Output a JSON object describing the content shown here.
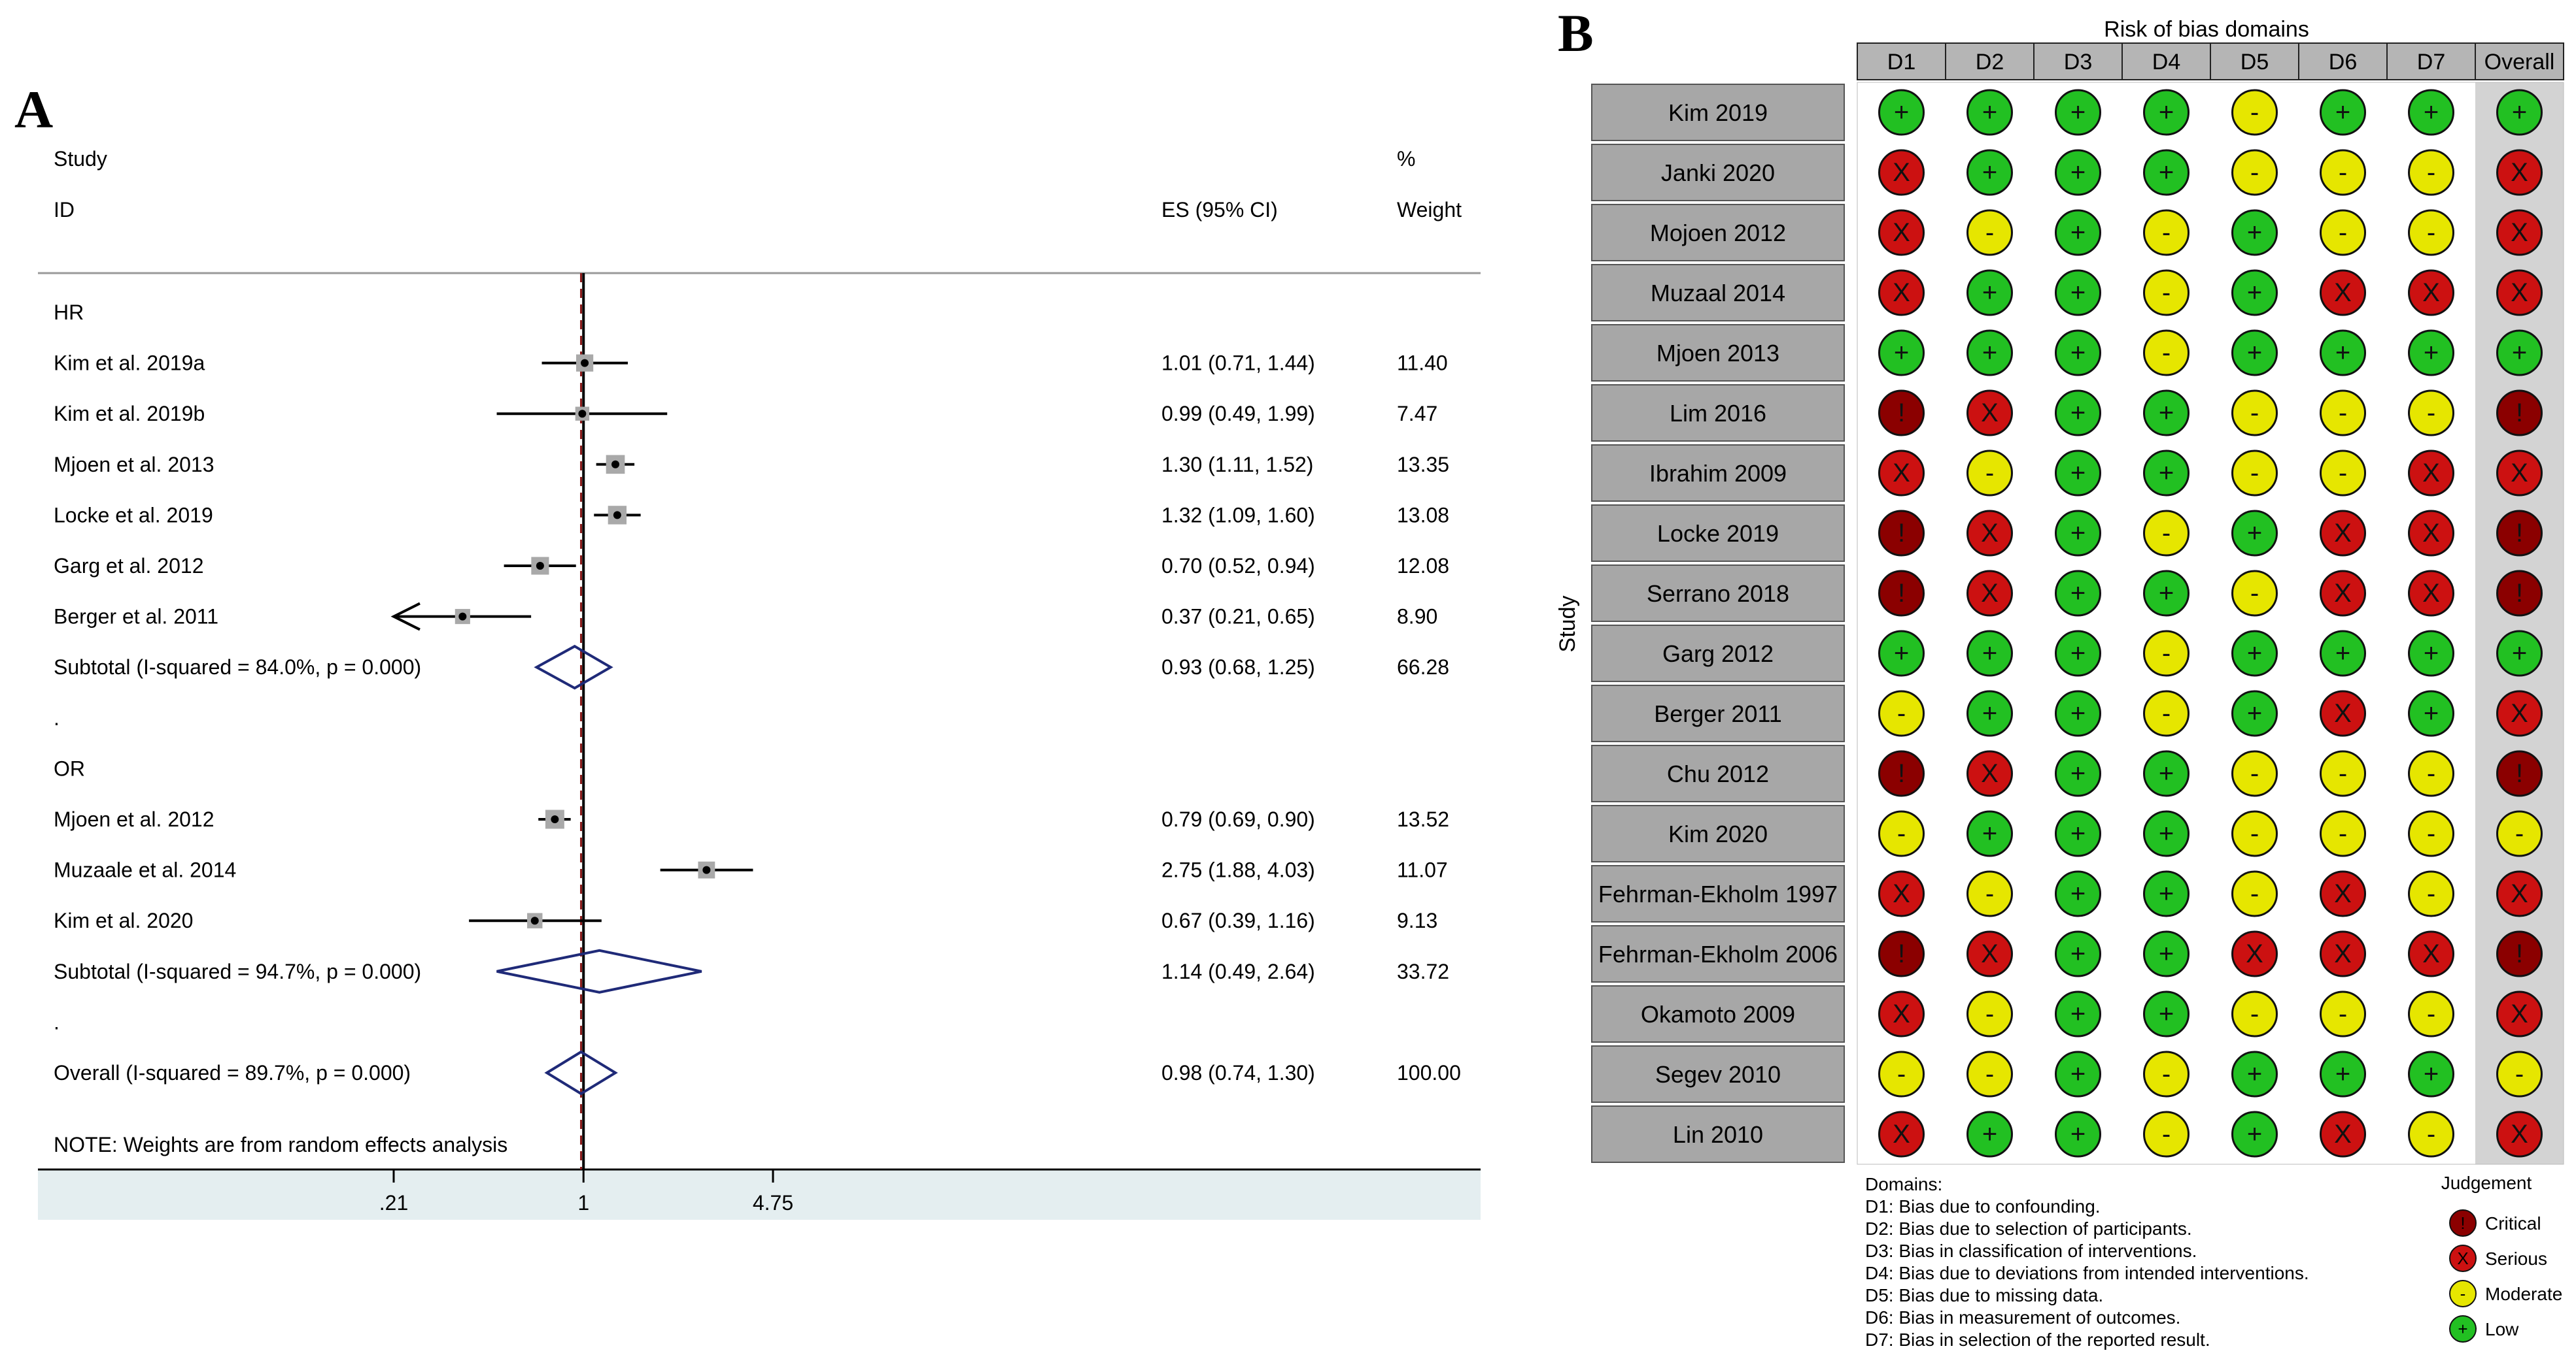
{
  "panel_a_label": "A",
  "panel_b_label": "B",
  "chart_data": [
    {
      "type": "forest",
      "header": {
        "col1_line1": "Study",
        "col1_line2": "ID",
        "es": "ES (95% CI)",
        "w_line1": "%",
        "w_line2": "Weight"
      },
      "rows": [
        {
          "kind": "group",
          "label": "HR"
        },
        {
          "kind": "study",
          "label": "Kim et al. 2019a",
          "es": 1.01,
          "lo": 0.71,
          "hi": 1.44,
          "es_text": "1.01 (0.71, 1.44)",
          "weight": 11.4,
          "weight_text": "11.40"
        },
        {
          "kind": "study",
          "label": "Kim et al. 2019b",
          "es": 0.99,
          "lo": 0.49,
          "hi": 1.99,
          "es_text": "0.99 (0.49, 1.99)",
          "weight": 7.47,
          "weight_text": "7.47"
        },
        {
          "kind": "study",
          "label": "Mjoen et al. 2013",
          "es": 1.3,
          "lo": 1.11,
          "hi": 1.52,
          "es_text": "1.30 (1.11, 1.52)",
          "weight": 13.35,
          "weight_text": "13.35"
        },
        {
          "kind": "study",
          "label": "Locke et al. 2019",
          "es": 1.32,
          "lo": 1.09,
          "hi": 1.6,
          "es_text": "1.32 (1.09, 1.60)",
          "weight": 13.08,
          "weight_text": "13.08"
        },
        {
          "kind": "study",
          "label": "Garg et al. 2012",
          "es": 0.7,
          "lo": 0.52,
          "hi": 0.94,
          "es_text": "0.70 (0.52, 0.94)",
          "weight": 12.08,
          "weight_text": "12.08"
        },
        {
          "kind": "study",
          "label": "Berger et al. 2011",
          "es": 0.37,
          "lo": 0.21,
          "hi": 0.65,
          "es_text": "0.37 (0.21, 0.65)",
          "weight": 8.9,
          "weight_text": "8.90",
          "arrow_left": true
        },
        {
          "kind": "subtotal",
          "label": "Subtotal  (I-squared = 84.0%, p = 0.000)",
          "es": 0.93,
          "lo": 0.68,
          "hi": 1.25,
          "es_text": "0.93 (0.68, 1.25)",
          "weight_text": "66.28"
        },
        {
          "kind": "dot",
          "label": "."
        },
        {
          "kind": "group",
          "label": "OR"
        },
        {
          "kind": "study",
          "label": "Mjoen et al. 2012",
          "es": 0.79,
          "lo": 0.69,
          "hi": 0.9,
          "es_text": "0.79 (0.69, 0.90)",
          "weight": 13.52,
          "weight_text": "13.52"
        },
        {
          "kind": "study",
          "label": "Muzaale et al. 2014",
          "es": 2.75,
          "lo": 1.88,
          "hi": 4.03,
          "es_text": "2.75 (1.88, 4.03)",
          "weight": 11.07,
          "weight_text": "11.07"
        },
        {
          "kind": "study",
          "label": "Kim et al. 2020",
          "es": 0.67,
          "lo": 0.39,
          "hi": 1.16,
          "es_text": "0.67 (0.39, 1.16)",
          "weight": 9.13,
          "weight_text": "9.13"
        },
        {
          "kind": "subtotal",
          "label": "Subtotal  (I-squared = 94.7%, p = 0.000)",
          "es": 1.14,
          "lo": 0.49,
          "hi": 2.64,
          "es_text": "1.14 (0.49, 2.64)",
          "weight_text": "33.72"
        },
        {
          "kind": "dot",
          "label": "."
        },
        {
          "kind": "overall",
          "label": "Overall  (I-squared = 89.7%, p = 0.000)",
          "es": 0.98,
          "lo": 0.74,
          "hi": 1.3,
          "es_text": "0.98 (0.74, 1.30)",
          "weight_text": "100.00"
        }
      ],
      "note": "NOTE: Weights are from random effects analysis",
      "x_scale": "log",
      "x_range": [
        0.21,
        4.75
      ],
      "x_ticks": [
        0.21,
        1,
        4.75
      ],
      "x_tick_labels": [
        ".21",
        "1",
        "4.75"
      ],
      "null_line": 1,
      "pooled_line": 0.98,
      "colors": {
        "diamond": "#1f2a78",
        "box": "#a9a9a9",
        "pooled_line": "#8b1a1a",
        "axis_band": "#e4eef0"
      }
    },
    {
      "type": "risk-of-bias-table",
      "title": "Risk of bias domains",
      "y_label": "Study",
      "domains": [
        "D1",
        "D2",
        "D3",
        "D4",
        "D5",
        "D6",
        "D7",
        "Overall"
      ],
      "studies": [
        {
          "name": "Kim 2019",
          "judgements": [
            "L",
            "L",
            "L",
            "L",
            "M",
            "L",
            "L",
            "L"
          ]
        },
        {
          "name": "Janki 2020",
          "judgements": [
            "S",
            "L",
            "L",
            "L",
            "M",
            "M",
            "M",
            "S"
          ]
        },
        {
          "name": "Mojoen 2012",
          "judgements": [
            "S",
            "M",
            "L",
            "M",
            "L",
            "M",
            "M",
            "S"
          ]
        },
        {
          "name": "Muzaal 2014",
          "judgements": [
            "S",
            "L",
            "L",
            "M",
            "L",
            "S",
            "S",
            "S"
          ]
        },
        {
          "name": "Mjoen 2013",
          "judgements": [
            "L",
            "L",
            "L",
            "M",
            "L",
            "L",
            "L",
            "L"
          ]
        },
        {
          "name": "Lim 2016",
          "judgements": [
            "C",
            "S",
            "L",
            "L",
            "M",
            "M",
            "M",
            "C"
          ]
        },
        {
          "name": "Ibrahim 2009",
          "judgements": [
            "S",
            "M",
            "L",
            "L",
            "M",
            "M",
            "S",
            "S"
          ]
        },
        {
          "name": "Locke 2019",
          "judgements": [
            "C",
            "S",
            "L",
            "M",
            "L",
            "S",
            "S",
            "C"
          ]
        },
        {
          "name": "Serrano 2018",
          "judgements": [
            "C",
            "S",
            "L",
            "L",
            "M",
            "S",
            "S",
            "C"
          ]
        },
        {
          "name": "Garg 2012",
          "judgements": [
            "L",
            "L",
            "L",
            "M",
            "L",
            "L",
            "L",
            "L"
          ]
        },
        {
          "name": "Berger 2011",
          "judgements": [
            "M",
            "L",
            "L",
            "M",
            "L",
            "S",
            "L",
            "S"
          ]
        },
        {
          "name": "Chu 2012",
          "judgements": [
            "C",
            "S",
            "L",
            "L",
            "M",
            "M",
            "M",
            "C"
          ]
        },
        {
          "name": "Kim 2020",
          "judgements": [
            "M",
            "L",
            "L",
            "L",
            "M",
            "M",
            "M",
            "M"
          ]
        },
        {
          "name": "Fehrman-Ekholm 1997",
          "judgements": [
            "S",
            "M",
            "L",
            "L",
            "M",
            "S",
            "M",
            "S"
          ]
        },
        {
          "name": "Fehrman-Ekholm 2006",
          "judgements": [
            "C",
            "S",
            "L",
            "L",
            "S",
            "S",
            "S",
            "C"
          ]
        },
        {
          "name": "Okamoto 2009",
          "judgements": [
            "S",
            "M",
            "L",
            "L",
            "M",
            "M",
            "M",
            "S"
          ]
        },
        {
          "name": "Segev 2010",
          "judgements": [
            "M",
            "M",
            "L",
            "M",
            "L",
            "L",
            "L",
            "M"
          ]
        },
        {
          "name": "Lin 2010",
          "judgements": [
            "S",
            "L",
            "L",
            "M",
            "L",
            "S",
            "M",
            "S"
          ]
        }
      ],
      "levels": {
        "C": {
          "label": "Critical",
          "symbol": "!",
          "color": "#8b0000"
        },
        "S": {
          "label": "Serious",
          "symbol": "X",
          "color": "#cc1111"
        },
        "M": {
          "label": "Moderate",
          "symbol": "-",
          "color": "#e6e600"
        },
        "L": {
          "label": "Low",
          "symbol": "+",
          "color": "#22c022"
        }
      },
      "domains_legend_title": "Domains:",
      "domains_legend": [
        "D1: Bias due to confounding.",
        "D2: Bias due to selection of participants.",
        "D3: Bias in classification of interventions.",
        "D4: Bias due to deviations from intended interventions.",
        "D5: Bias due to missing data.",
        "D6: Bias in measurement of outcomes.",
        "D7: Bias in selection of the reported result."
      ],
      "judgement_legend_title": "Judgement",
      "judgement_legend_order": [
        "C",
        "S",
        "M",
        "L"
      ]
    }
  ]
}
